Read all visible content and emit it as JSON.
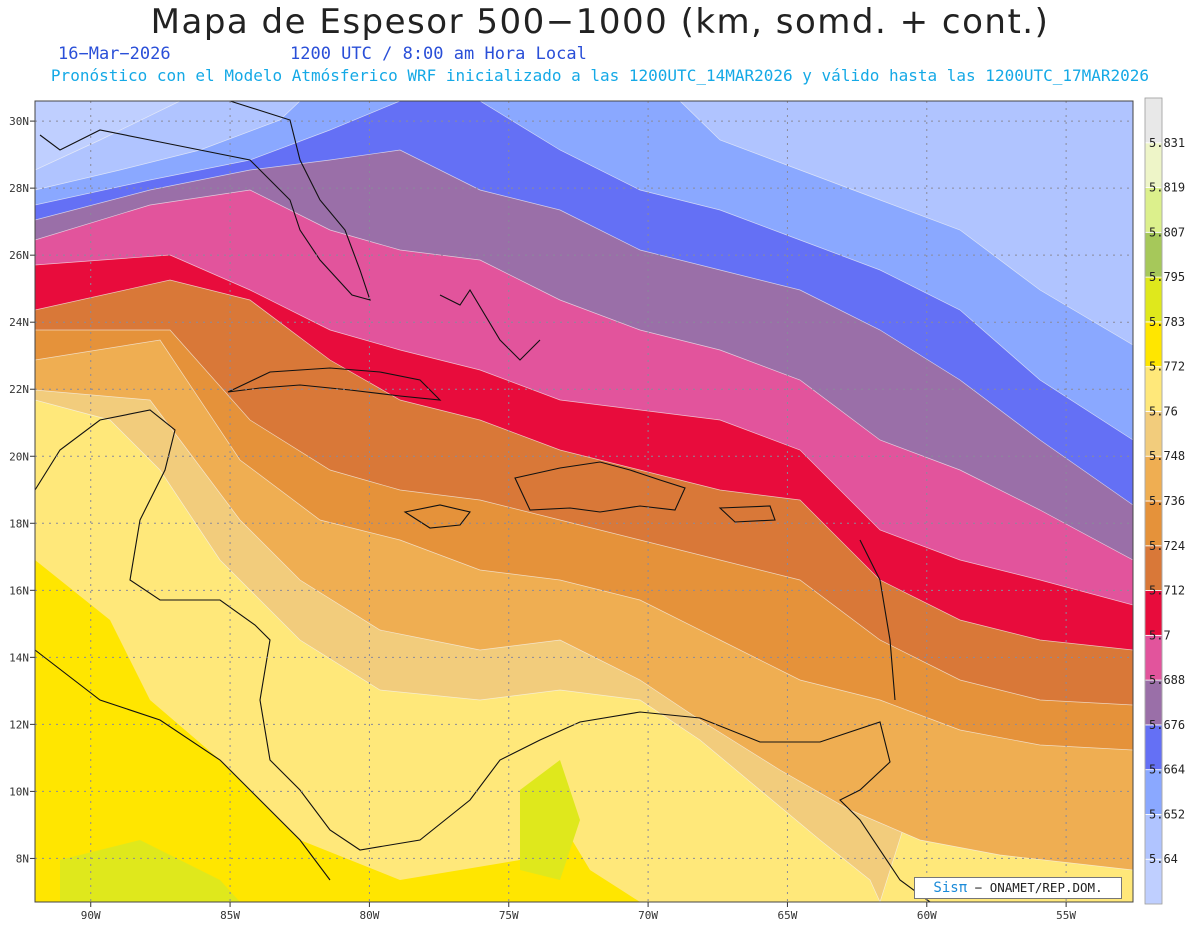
{
  "header": {
    "title": "Mapa de Espesor 500−1000 (km, somd. + cont.)",
    "date": "16−Mar−2026",
    "time": "1200 UTC / 8:00 am Hora Local",
    "forecast_info": "Pronóstico con el Modelo Atmósferico WRF inicializado a las 1200UTC_14MAR2026 y válido hasta las  1200UTC_17MAR2026"
  },
  "axes": {
    "longitude_labels": [
      "90W",
      "85W",
      "80W",
      "75W",
      "70W",
      "65W",
      "60W",
      "55W"
    ],
    "latitude_labels": [
      "30N",
      "28N",
      "26N",
      "24N",
      "22N",
      "20N",
      "18N",
      "16N",
      "14N",
      "12N",
      "10N",
      "8N"
    ],
    "lon_range": [
      -92,
      -52.6
    ],
    "lat_range": [
      6.7,
      30.6
    ],
    "grid": "dotted"
  },
  "colorbar": {
    "levels": [
      "5.64",
      "5.652",
      "5.664",
      "5.676",
      "5.688",
      "5.7",
      "5.712",
      "5.724",
      "5.736",
      "5.748",
      "5.76",
      "5.772",
      "5.783",
      "5.795",
      "5.807",
      "5.819",
      "5.831"
    ],
    "colors": [
      "#bfcfff",
      "#b0c4ff",
      "#8aa8ff",
      "#6470f5",
      "#9a6fa8",
      "#e2549c",
      "#e80c3c",
      "#d97838",
      "#e5923a",
      "#efae52",
      "#f2cc7c",
      "#ffe87a",
      "#ffe600",
      "#dfe81c",
      "#a6c85a",
      "#dcf08c",
      "#eef5c8",
      "#e8e8e8"
    ]
  },
  "credit": {
    "logo": "Sisπ",
    "text": "− ONAMET/REP.DOM."
  }
}
